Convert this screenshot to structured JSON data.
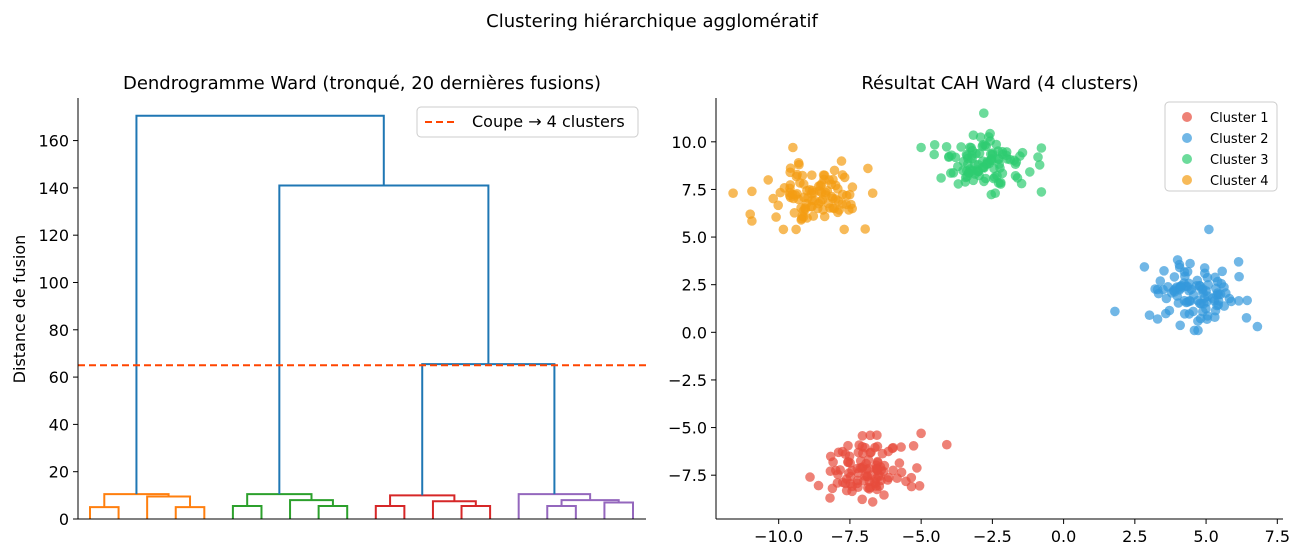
{
  "figure_title": "Clustering hiérarchique agglomératif",
  "chart_data": [
    {
      "type": "dendrogram",
      "title": "Dendrogramme Ward (tronqué, 20 dernières fusions)",
      "xlabel": "",
      "ylabel": "Distance de fusion",
      "ylim": [
        0,
        178
      ],
      "yticks": [
        0,
        20,
        40,
        60,
        80,
        100,
        120,
        140,
        160
      ],
      "cut_line": {
        "value": 65,
        "label": "Coupe → 4 clusters",
        "color": "#ff4500"
      },
      "legend_position": "top-right",
      "link_color_above_cut": "#1f77b4",
      "leaves": 20,
      "links": [
        {
          "x": [
            0.5,
            1.5
          ],
          "h": [
            0,
            5,
            5,
            0
          ],
          "color": "#ff7f0e"
        },
        {
          "x": [
            3.5,
            4.5
          ],
          "h": [
            0,
            5,
            5,
            0
          ],
          "color": "#ff7f0e"
        },
        {
          "x": [
            2.5,
            4.0
          ],
          "h": [
            0,
            9.5,
            9.5,
            5
          ],
          "color": "#ff7f0e"
        },
        {
          "x": [
            1.0,
            3.25
          ],
          "h": [
            5,
            10.5,
            10.5,
            9.5
          ],
          "color": "#ff7f0e"
        },
        {
          "x": [
            5.5,
            6.5
          ],
          "h": [
            0,
            5.5,
            5.5,
            0
          ],
          "color": "#2ca02c"
        },
        {
          "x": [
            8.5,
            9.5
          ],
          "h": [
            0,
            5.5,
            5.5,
            0
          ],
          "color": "#2ca02c"
        },
        {
          "x": [
            7.5,
            9.0
          ],
          "h": [
            0,
            8,
            8,
            5.5
          ],
          "color": "#2ca02c"
        },
        {
          "x": [
            6.0,
            8.25
          ],
          "h": [
            5.5,
            10.5,
            10.5,
            8
          ],
          "color": "#2ca02c"
        },
        {
          "x": [
            10.5,
            11.5
          ],
          "h": [
            0,
            5.5,
            5.5,
            0
          ],
          "color": "#d62728"
        },
        {
          "x": [
            13.5,
            14.5
          ],
          "h": [
            0,
            5.5,
            5.5,
            0
          ],
          "color": "#d62728"
        },
        {
          "x": [
            12.5,
            14.0
          ],
          "h": [
            0,
            7.5,
            7.5,
            5.5
          ],
          "color": "#d62728"
        },
        {
          "x": [
            11.0,
            13.25
          ],
          "h": [
            5.5,
            10,
            10,
            7.5
          ],
          "color": "#d62728"
        },
        {
          "x": [
            16.5,
            17.5
          ],
          "h": [
            0,
            5.5,
            5.5,
            0
          ],
          "color": "#9467bd"
        },
        {
          "x": [
            18.5,
            19.5
          ],
          "h": [
            0,
            7,
            7,
            0
          ],
          "color": "#9467bd"
        },
        {
          "x": [
            17.0,
            19.0
          ],
          "h": [
            5.5,
            8,
            8,
            7
          ],
          "color": "#9467bd"
        },
        {
          "x": [
            15.5,
            18.0
          ],
          "h": [
            0,
            10.5,
            10.5,
            8
          ],
          "color": "#9467bd"
        },
        {
          "x": [
            12.125,
            16.75
          ],
          "h": [
            10,
            65.5,
            65.5,
            10.5
          ],
          "color": "#1f77b4"
        },
        {
          "x": [
            7.125,
            14.44
          ],
          "h": [
            10.5,
            141,
            141,
            65.5
          ],
          "color": "#1f77b4"
        },
        {
          "x": [
            2.125,
            10.78
          ],
          "h": [
            10.5,
            170.5,
            170.5,
            141
          ],
          "color": "#1f77b4"
        }
      ]
    },
    {
      "type": "scatter",
      "title": "Résultat CAH Ward (4 clusters)",
      "xlabel": "",
      "ylabel": "",
      "xlim": [
        -12.2,
        7.7
      ],
      "ylim": [
        -9.8,
        12.3
      ],
      "xticks": [
        -10.0,
        -7.5,
        -5.0,
        -2.5,
        0.0,
        2.5,
        5.0,
        7.5
      ],
      "xtick_labels": [
        "−10.0",
        "−7.5",
        "−5.0",
        "−2.5",
        "0.0",
        "2.5",
        "5.0",
        "7.5"
      ],
      "yticks": [
        -7.5,
        -5.0,
        -2.5,
        0.0,
        2.5,
        5.0,
        7.5,
        10.0
      ],
      "ytick_labels": [
        "−7.5",
        "−5.0",
        "−2.5",
        "0.0",
        "2.5",
        "5.0",
        "7.5",
        "10.0"
      ],
      "legend_position": "top-right",
      "series": [
        {
          "name": "Cluster 1",
          "color": "#e74c3c",
          "center": [
            -6.9,
            -7.2
          ],
          "spread": [
            0.85,
            0.75
          ],
          "n": 100,
          "extra_points": [
            [
              -8.9,
              -7.6
            ],
            [
              -4.1,
              -5.9
            ],
            [
              -5.0,
              -5.3
            ],
            [
              -6.7,
              -8.9
            ],
            [
              -8.2,
              -8.7
            ]
          ]
        },
        {
          "name": "Cluster 2",
          "color": "#3498db",
          "center": [
            4.7,
            1.9
          ],
          "spread": [
            0.8,
            0.75
          ],
          "n": 100,
          "extra_points": [
            [
              1.8,
              1.1
            ],
            [
              5.1,
              5.4
            ],
            [
              6.8,
              0.3
            ],
            [
              3.3,
              0.7
            ],
            [
              4.0,
              3.8
            ]
          ]
        },
        {
          "name": "Cluster 3",
          "color": "#2ecc71",
          "center": [
            -2.7,
            8.9
          ],
          "spread": [
            0.8,
            0.8
          ],
          "n": 100,
          "extra_points": [
            [
              -5.0,
              9.7
            ],
            [
              -2.8,
              11.5
            ],
            [
              -0.9,
              9.2
            ],
            [
              -4.3,
              8.1
            ],
            [
              -2.4,
              7.3
            ]
          ]
        },
        {
          "name": "Cluster 4",
          "color": "#f39c12",
          "center": [
            -8.9,
            7.2
          ],
          "spread": [
            0.85,
            0.75
          ],
          "n": 100,
          "extra_points": [
            [
              -11.6,
              7.3
            ],
            [
              -9.5,
              9.7
            ],
            [
              -7.7,
              5.4
            ],
            [
              -11.0,
              6.2
            ],
            [
              -6.7,
              7.3
            ]
          ]
        }
      ]
    }
  ]
}
